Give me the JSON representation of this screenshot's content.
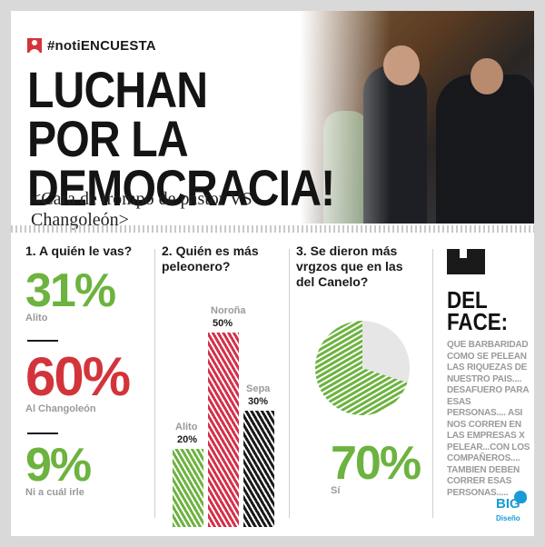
{
  "header": {
    "tag": "#notiENCUESTA",
    "headline_line1": "LUCHAN POR LA",
    "headline_line2": "DEMOCRACIA!",
    "subtitle": "<Cara de trompo de pastor VS Changoleón>"
  },
  "q1": {
    "title": "1. A quién le vas?",
    "stats": [
      {
        "pct": "31%",
        "label": "Alito",
        "color": "#6cb33f"
      },
      {
        "pct": "60%",
        "label": "Al Changoleón",
        "color": "#d3343b"
      },
      {
        "pct": "9%",
        "label": "Ni a cuál irle",
        "color": "#6cb33f"
      }
    ]
  },
  "q2": {
    "title": "2. Quién es más peleonero?",
    "bars": [
      {
        "label": "Alito",
        "value_label": "20%",
        "value": 20,
        "color": "#6cb33f"
      },
      {
        "label": "Noroña",
        "value_label": "50%",
        "value": 50,
        "color": "#d5304a"
      },
      {
        "label": "Sepa",
        "value_label": "30%",
        "value": 30,
        "color": "#1a1a1a"
      }
    ]
  },
  "q3": {
    "title": "3. Se dieron más vrgzos que en las del Canelo?",
    "pct": "70%",
    "label": "Sí",
    "value": 70,
    "color": "#6cb33f"
  },
  "face": {
    "title_line1": "DEL",
    "title_line2": "FACE:",
    "text": "QUE BARBARIDAD COMO SE PELEAN LAS RIQUEZAS DE NUESTRO PAIS.... DESAFUERO PARA ESAS PERSONAS.... ASI NOS CORREN EN LAS EMPRESAS X PELEAR...CON LOS COMPAÑEROS.... TAMBIEN DEBEN CORRER ESAS PERSONAS....."
  },
  "logo": {
    "big": "BIG",
    "sub": "Diseño"
  }
}
